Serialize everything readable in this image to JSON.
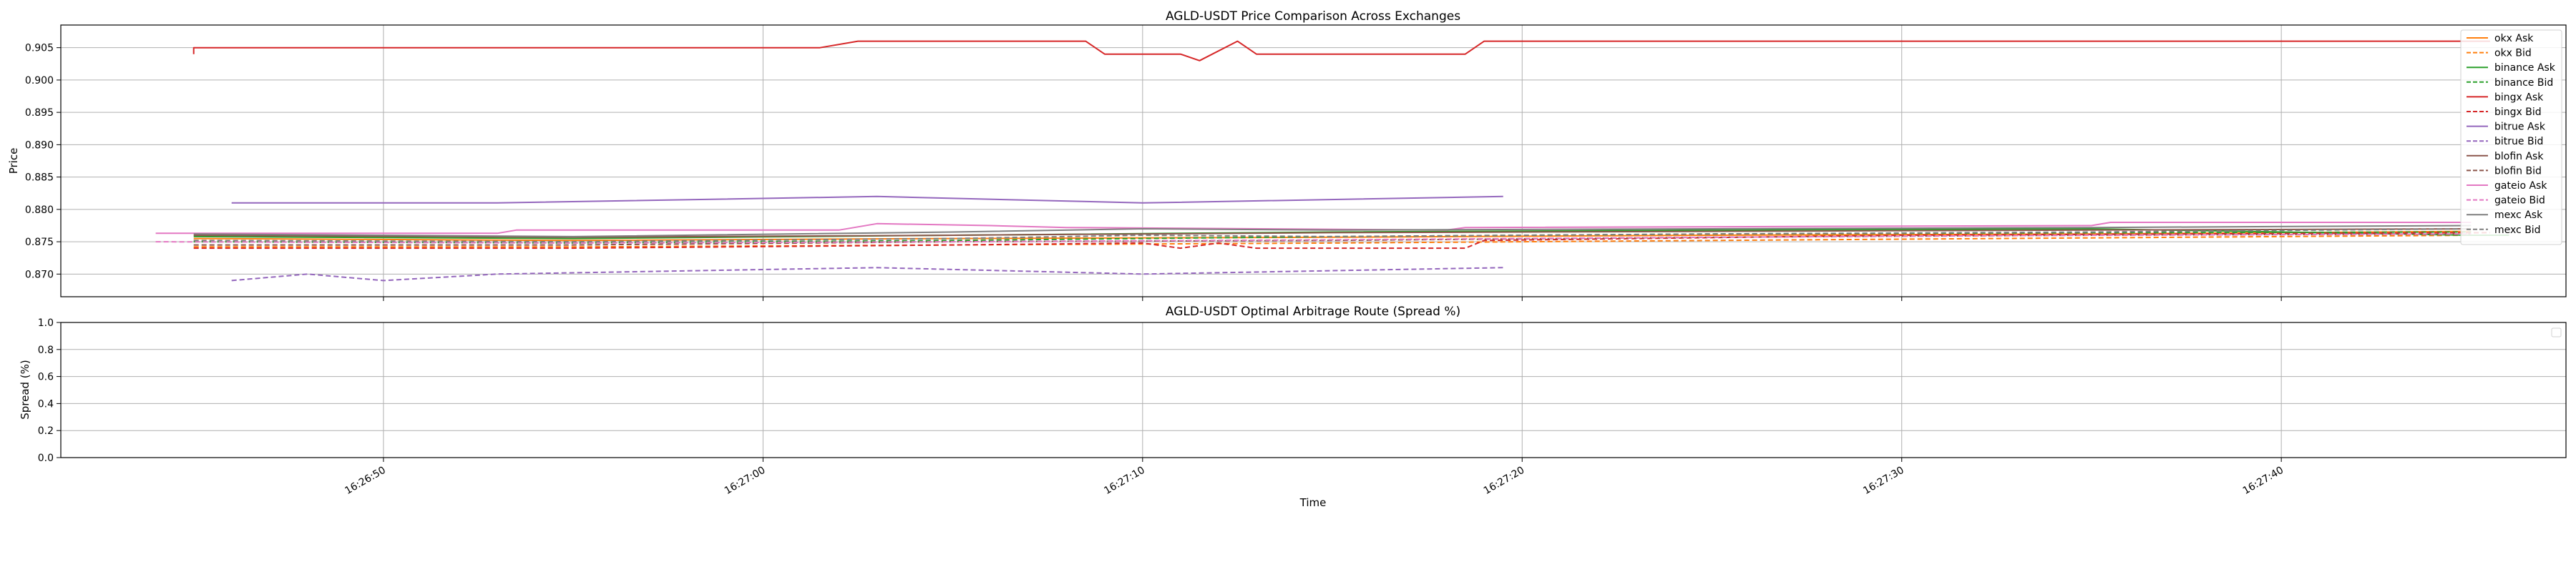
{
  "chart_data": [
    {
      "type": "line",
      "title": "AGLD-USDT Price Comparison Across Exchanges",
      "xlabel": "",
      "ylabel": "Price",
      "ylim": [
        0.8665,
        0.9085
      ],
      "yticks": [
        0.87,
        0.875,
        0.88,
        0.885,
        0.89,
        0.895,
        0.9,
        0.905
      ],
      "ytick_labels": [
        "0.870",
        "0.875",
        "0.880",
        "0.885",
        "0.890",
        "0.895",
        "0.900",
        "0.905"
      ],
      "xlim": [
        "16:26:41.5",
        "16:27:47.5"
      ],
      "xticks": [
        "16:26:50",
        "16:27:00",
        "16:27:10",
        "16:27:20",
        "16:27:30",
        "16:27:40"
      ],
      "grid": true,
      "legend_position": "right",
      "series": [
        {
          "name": "okx Ask",
          "color": "#ff7f0e",
          "dash": "solid",
          "data": [
            [
              "16:26:45",
              0.8755
            ],
            [
              "16:26:55",
              0.8752
            ],
            [
              "16:27:05",
              0.8755
            ],
            [
              "16:27:15",
              0.8757
            ],
            [
              "16:27:25",
              0.876
            ],
            [
              "16:27:35",
              0.8762
            ],
            [
              "16:27:45",
              0.8766
            ]
          ]
        },
        {
          "name": "okx Bid",
          "color": "#ff7f0e",
          "dash": "dashed",
          "data": [
            [
              "16:26:45",
              0.8742
            ],
            [
              "16:26:55",
              0.8742
            ],
            [
              "16:27:05",
              0.8745
            ],
            [
              "16:27:15",
              0.8748
            ],
            [
              "16:27:25",
              0.8752
            ],
            [
              "16:27:35",
              0.8756
            ],
            [
              "16:27:45",
              0.876
            ]
          ]
        },
        {
          "name": "binance Ask",
          "color": "#2ca02c",
          "dash": "solid",
          "data": [
            [
              "16:26:45",
              0.8758
            ],
            [
              "16:26:55",
              0.8755
            ],
            [
              "16:27:05",
              0.876
            ],
            [
              "16:27:15",
              0.8765
            ],
            [
              "16:27:25",
              0.8768
            ],
            [
              "16:27:35",
              0.877
            ],
            [
              "16:27:45",
              0.876
            ],
            [
              "16:27:46",
              0.876
            ]
          ]
        },
        {
          "name": "binance Bid",
          "color": "#2ca02c",
          "dash": "dashed",
          "data": [
            [
              "16:26:45",
              0.875
            ],
            [
              "16:26:55",
              0.8748
            ],
            [
              "16:27:05",
              0.8752
            ],
            [
              "16:27:15",
              0.8758
            ],
            [
              "16:27:25",
              0.8762
            ],
            [
              "16:27:35",
              0.8764
            ],
            [
              "16:27:45",
              0.8765
            ]
          ]
        },
        {
          "name": "bingx Ask",
          "color": "#d62728",
          "dash": "solid",
          "data": [
            [
              "16:26:45",
              0.904
            ],
            [
              "16:26:45",
              0.905
            ],
            [
              "16:27:01.5",
              0.905
            ],
            [
              "16:27:02.5",
              0.906
            ],
            [
              "16:27:08.5",
              0.906
            ],
            [
              "16:27:09",
              0.904
            ],
            [
              "16:27:11",
              0.904
            ],
            [
              "16:27:11.5",
              0.903
            ],
            [
              "16:27:12.5",
              0.906
            ],
            [
              "16:27:13",
              0.904
            ],
            [
              "16:27:18.5",
              0.904
            ],
            [
              "16:27:19",
              0.906
            ],
            [
              "16:27:45.5",
              0.906
            ]
          ]
        },
        {
          "name": "bingx Bid",
          "color": "#d62728",
          "dash": "dashed",
          "data": [
            [
              "16:26:45",
              0.874
            ],
            [
              "16:26:55",
              0.874
            ],
            [
              "16:27:05",
              0.8745
            ],
            [
              "16:27:10",
              0.8748
            ],
            [
              "16:27:11",
              0.874
            ],
            [
              "16:27:12",
              0.8748
            ],
            [
              "16:27:13",
              0.874
            ],
            [
              "16:27:18.5",
              0.874
            ],
            [
              "16:27:19",
              0.8752
            ],
            [
              "16:27:30",
              0.876
            ],
            [
              "16:27:45.5",
              0.8764
            ]
          ]
        },
        {
          "name": "bitrue Ask",
          "color": "#9467bd",
          "dash": "solid",
          "data": [
            [
              "16:26:46",
              0.881
            ],
            [
              "16:26:53",
              0.881
            ],
            [
              "16:27:03",
              0.882
            ],
            [
              "16:27:10",
              0.881
            ],
            [
              "16:27:19.5",
              0.882
            ]
          ]
        },
        {
          "name": "bitrue Bid",
          "color": "#9467bd",
          "dash": "dashed",
          "data": [
            [
              "16:26:46",
              0.869
            ],
            [
              "16:26:48",
              0.87
            ],
            [
              "16:26:50",
              0.869
            ],
            [
              "16:26:53",
              0.87
            ],
            [
              "16:27:03",
              0.871
            ],
            [
              "16:27:10",
              0.87
            ],
            [
              "16:27:19.5",
              0.871
            ]
          ]
        },
        {
          "name": "blofin Ask",
          "color": "#8c564b",
          "dash": "solid",
          "data": [
            [
              "16:26:45",
              0.876
            ],
            [
              "16:26:55",
              0.8757
            ],
            [
              "16:27:05",
              0.876
            ],
            [
              "16:27:15",
              0.8764
            ],
            [
              "16:27:25",
              0.8766
            ],
            [
              "16:27:35",
              0.8768
            ],
            [
              "16:27:45",
              0.877
            ]
          ]
        },
        {
          "name": "blofin Bid",
          "color": "#8c564b",
          "dash": "dashed",
          "data": [
            [
              "16:26:45",
              0.8745
            ],
            [
              "16:26:55",
              0.8745
            ],
            [
              "16:27:05",
              0.875
            ],
            [
              "16:27:15",
              0.8752
            ],
            [
              "16:27:25",
              0.8757
            ],
            [
              "16:27:35",
              0.876
            ],
            [
              "16:27:45",
              0.8762
            ]
          ]
        },
        {
          "name": "gateio Ask",
          "color": "#e377c2",
          "dash": "solid",
          "data": [
            [
              "16:26:44",
              0.8763
            ],
            [
              "16:26:53",
              0.8763
            ],
            [
              "16:26:53.5",
              0.8768
            ],
            [
              "16:27:02",
              0.8768
            ],
            [
              "16:27:03",
              0.8778
            ],
            [
              "16:27:06",
              0.8775
            ],
            [
              "16:27:08",
              0.8772
            ],
            [
              "16:27:18",
              0.8768
            ],
            [
              "16:27:18.5",
              0.8772
            ],
            [
              "16:27:35",
              0.8775
            ],
            [
              "16:27:35.5",
              0.878
            ],
            [
              "16:27:45",
              0.878
            ]
          ]
        },
        {
          "name": "gateio Bid",
          "color": "#e377c2",
          "dash": "dashed",
          "data": [
            [
              "16:26:44",
              0.875
            ],
            [
              "16:26:55",
              0.8748
            ],
            [
              "16:27:05",
              0.875
            ],
            [
              "16:27:15",
              0.8753
            ],
            [
              "16:27:25",
              0.8757
            ],
            [
              "16:27:35",
              0.876
            ],
            [
              "16:27:45",
              0.8762
            ]
          ]
        },
        {
          "name": "mexc Ask",
          "color": "#7f7f7f",
          "dash": "solid",
          "data": [
            [
              "16:26:45",
              0.8762
            ],
            [
              "16:26:55",
              0.8758
            ],
            [
              "16:27:05",
              0.8765
            ],
            [
              "16:27:10",
              0.877
            ],
            [
              "16:27:15",
              0.8768
            ],
            [
              "16:27:25",
              0.877
            ],
            [
              "16:27:35",
              0.8772
            ],
            [
              "16:27:45",
              0.8775
            ]
          ]
        },
        {
          "name": "mexc Bid",
          "color": "#7f7f7f",
          "dash": "dashed",
          "data": [
            [
              "16:26:45",
              0.8752
            ],
            [
              "16:26:55",
              0.875
            ],
            [
              "16:27:05",
              0.8755
            ],
            [
              "16:27:10",
              0.876
            ],
            [
              "16:27:15",
              0.8758
            ],
            [
              "16:27:25",
              0.8762
            ],
            [
              "16:27:35",
              0.8765
            ],
            [
              "16:27:45",
              0.877
            ]
          ]
        }
      ]
    },
    {
      "type": "line",
      "title": "AGLD-USDT Optimal Arbitrage Route (Spread %)",
      "xlabel": "Time",
      "ylabel": "Spread (%)",
      "ylim": [
        0.0,
        1.0
      ],
      "yticks": [
        0.0,
        0.2,
        0.4,
        0.6,
        0.8,
        1.0
      ],
      "ytick_labels": [
        "0.0",
        "0.2",
        "0.4",
        "0.6",
        "0.8",
        "1.0"
      ],
      "xlim": [
        "16:26:41.5",
        "16:27:47.5"
      ],
      "xticks": [
        "16:26:50",
        "16:27:00",
        "16:27:10",
        "16:27:20",
        "16:27:30",
        "16:27:40"
      ],
      "xtick_labels": [
        "16:26:50",
        "16:27:00",
        "16:27:10",
        "16:27:20",
        "16:27:30",
        "16:27:40"
      ],
      "grid": true,
      "legend_position": "top-right",
      "series": []
    }
  ]
}
